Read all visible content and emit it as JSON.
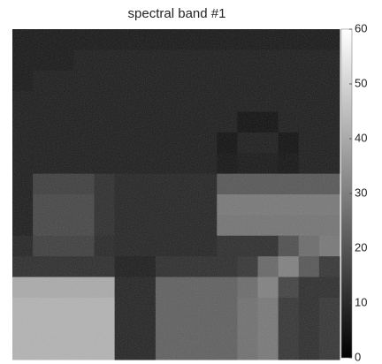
{
  "chart_data": {
    "type": "heatmap",
    "title": "spectral band #1",
    "colormap": "gray",
    "zlim": [
      0,
      60
    ],
    "zticks": [
      0,
      10,
      20,
      30,
      40,
      50,
      60
    ],
    "values": [
      [
        5,
        5,
        5,
        5,
        5,
        5,
        5,
        5,
        5,
        5,
        5,
        5,
        5,
        5,
        5,
        5
      ],
      [
        5,
        5,
        5,
        6,
        6,
        6,
        6,
        6,
        6,
        6,
        6,
        6,
        6,
        6,
        6,
        6
      ],
      [
        5,
        6,
        6,
        6,
        6,
        6,
        6,
        6,
        6,
        6,
        6,
        6,
        6,
        6,
        6,
        6
      ],
      [
        6,
        6,
        6,
        6,
        6,
        6,
        6,
        6,
        6,
        6,
        6,
        6,
        6,
        6,
        6,
        6
      ],
      [
        6,
        6,
        6,
        6,
        6,
        6,
        6,
        6,
        6,
        6,
        6,
        3,
        3,
        6,
        6,
        6
      ],
      [
        6,
        6,
        6,
        6,
        6,
        6,
        6,
        6,
        6,
        6,
        3,
        6,
        6,
        3,
        6,
        6
      ],
      [
        6,
        6,
        6,
        6,
        6,
        6,
        6,
        6,
        6,
        6,
        4,
        5,
        5,
        4,
        6,
        6
      ],
      [
        6,
        14,
        14,
        14,
        10,
        8,
        8,
        8,
        8,
        8,
        20,
        20,
        20,
        20,
        20,
        20
      ],
      [
        6,
        16,
        16,
        16,
        10,
        8,
        8,
        8,
        8,
        8,
        28,
        28,
        28,
        28,
        28,
        28
      ],
      [
        6,
        16,
        16,
        16,
        10,
        8,
        8,
        8,
        8,
        8,
        27,
        27,
        27,
        27,
        27,
        27
      ],
      [
        8,
        14,
        14,
        14,
        9,
        8,
        8,
        8,
        8,
        8,
        10,
        10,
        10,
        18,
        25,
        28
      ],
      [
        10,
        10,
        10,
        10,
        10,
        6,
        6,
        10,
        10,
        10,
        10,
        12,
        24,
        30,
        20,
        12
      ],
      [
        40,
        40,
        40,
        40,
        40,
        8,
        8,
        22,
        22,
        22,
        22,
        25,
        30,
        15,
        10,
        10
      ],
      [
        42,
        42,
        42,
        42,
        42,
        8,
        8,
        22,
        22,
        22,
        22,
        26,
        28,
        12,
        10,
        12
      ],
      [
        42,
        42,
        42,
        42,
        42,
        8,
        8,
        22,
        22,
        22,
        22,
        26,
        28,
        12,
        10,
        12
      ],
      [
        42,
        42,
        42,
        42,
        42,
        8,
        8,
        22,
        22,
        22,
        22,
        26,
        28,
        12,
        10,
        12
      ]
    ]
  }
}
